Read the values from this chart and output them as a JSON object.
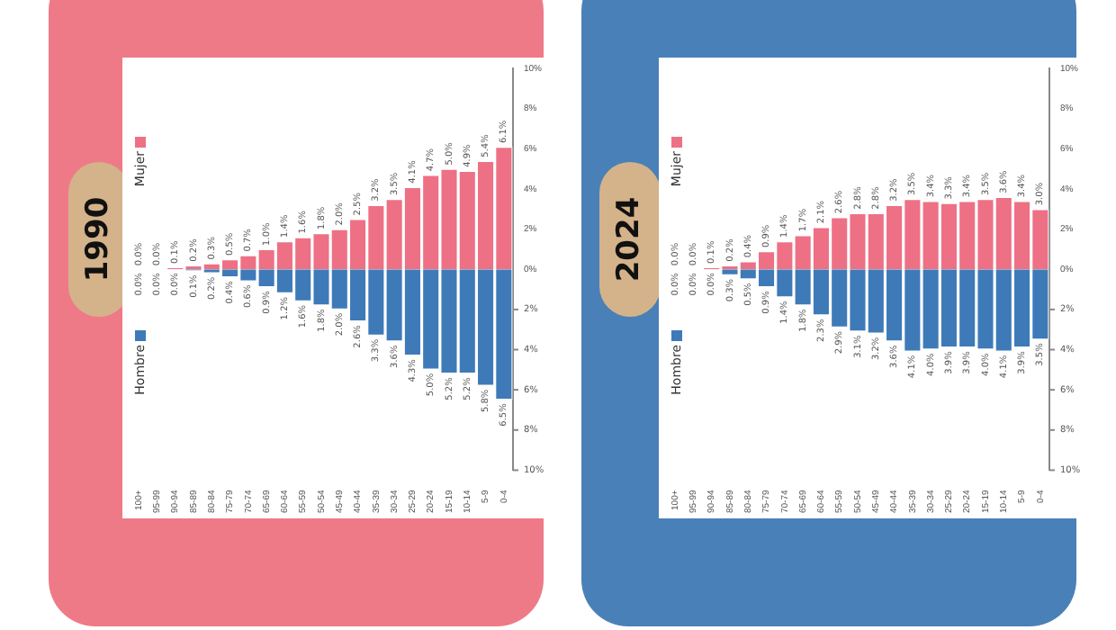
{
  "chart_data": [
    {
      "type": "bar",
      "title": "1990",
      "stacked": true,
      "legend": "left",
      "grid": false,
      "categories": [
        "100+",
        "95-99",
        "90-94",
        "85-89",
        "80-84",
        "75-79",
        "70-74",
        "65-69",
        "60-64",
        "55-59",
        "50-54",
        "45-49",
        "40-44",
        "35-39",
        "30-34",
        "25-29",
        "20-24",
        "15-19",
        "10-14",
        "5-9",
        "0-4"
      ],
      "series": [
        {
          "name": "Mujer",
          "color": "#ee7085",
          "values": [
            0,
            0,
            0.1,
            0.2,
            0.3,
            0.5,
            0.7,
            1,
            1.4,
            1.6,
            1.8,
            2,
            2.5,
            3.2,
            3.5,
            4.1,
            4.7,
            5,
            4.9,
            5.4,
            6.1
          ],
          "value_labels": [
            "0.0%",
            "0.0%",
            "0.1%",
            "0.2%",
            "0.3%",
            "0.5%",
            "0.7%",
            "1.0%",
            "1.4%",
            "1.6%",
            "1.8%",
            "2.0%",
            "2.5%",
            "3.2%",
            "3.5%",
            "4.1%",
            "4.7%",
            "5.0%",
            "4.9%",
            "5.4%",
            "6.1%"
          ]
        },
        {
          "name": "Hombre",
          "color": "#3e7ab8",
          "axis": "y2",
          "values": [
            0,
            0,
            0,
            0.1,
            0.2,
            0.4,
            0.6,
            0.9,
            1.2,
            1.6,
            1.8,
            2,
            2.6,
            3.3,
            3.6,
            4.3,
            5,
            5.2,
            5.2,
            5.8,
            6.5
          ],
          "value_labels": [
            "0.0%",
            "0.0%",
            "0.0%",
            "0.1%",
            "0.2%",
            "0.4%",
            "0.6%",
            "0.9%",
            "1.2%",
            "1.6%",
            "1.8%",
            "2.0%",
            "2.6%",
            "3.3%",
            "3.6%",
            "4.3%",
            "5.0%",
            "5.2%",
            "5.2%",
            "5.8%",
            "6.5%"
          ]
        }
      ],
      "ylim": [
        -10,
        10
      ],
      "yticks": [
        {
          "value": 0,
          "label": "0%"
        },
        {
          "value": 2,
          "label": "2%"
        },
        {
          "value": 4,
          "label": "4%"
        },
        {
          "value": 6,
          "label": "6%"
        },
        {
          "value": 8,
          "label": "8%"
        },
        {
          "value": 10,
          "label": "10%"
        }
      ],
      "y2lim": [
        10,
        -10
      ],
      "y2ticks": [
        {
          "value": 2,
          "label": "2%"
        },
        {
          "value": 4,
          "label": "4%"
        },
        {
          "value": 6,
          "label": "6%"
        },
        {
          "value": 8,
          "label": "8%"
        },
        {
          "value": 10,
          "label": "10%"
        }
      ]
    },
    {
      "type": "bar",
      "title": "2024",
      "stacked": true,
      "legend": "left",
      "grid": false,
      "categories": [
        "100+",
        "95-99",
        "90-94",
        "85-89",
        "80-84",
        "75-79",
        "70-74",
        "65-69",
        "60-64",
        "55-59",
        "50-54",
        "45-49",
        "40-44",
        "35-39",
        "30-34",
        "25-29",
        "20-24",
        "15-19",
        "10-14",
        "5-9",
        "0-4"
      ],
      "series": [
        {
          "name": "Mujer",
          "color": "#ee7085",
          "values": [
            0,
            0,
            0.1,
            0.2,
            0.4,
            0.9,
            1.4,
            1.7,
            2.1,
            2.6,
            2.8,
            2.8,
            3.2,
            3.5,
            3.4,
            3.3,
            3.4,
            3.5,
            3.6,
            3.4,
            3
          ],
          "value_labels": [
            "0.0%",
            "0.0%",
            "0.1%",
            "0.2%",
            "0.4%",
            "0.9%",
            "1.4%",
            "1.7%",
            "2.1%",
            "2.6%",
            "2.8%",
            "2.8%",
            "3.2%",
            "3.5%",
            "3.4%",
            "3.3%",
            "3.4%",
            "3.5%",
            "3.6%",
            "3.4%",
            "3.0%"
          ]
        },
        {
          "name": "Hombre",
          "color": "#3e7ab8",
          "axis": "y2",
          "values": [
            0,
            0,
            0,
            0.3,
            0.5,
            0.9,
            1.4,
            1.8,
            2.3,
            2.9,
            3.1,
            3.2,
            3.6,
            4.1,
            4,
            3.9,
            3.9,
            4,
            4.1,
            3.9,
            3.5
          ],
          "value_labels": [
            "0.0%",
            "0.0%",
            "0.0%",
            "0.3%",
            "0.5%",
            "0.9%",
            "1.4%",
            "1.8%",
            "2.3%",
            "2.9%",
            "3.1%",
            "3.2%",
            "3.6%",
            "4.1%",
            "4.0%",
            "3.9%",
            "3.9%",
            "4.0%",
            "4.1%",
            "3.9%",
            "3.5%"
          ]
        }
      ],
      "ylim": [
        -10,
        10
      ],
      "yticks": [
        {
          "value": 0,
          "label": "0%"
        },
        {
          "value": 2,
          "label": "2%"
        },
        {
          "value": 4,
          "label": "4%"
        },
        {
          "value": 6,
          "label": "6%"
        },
        {
          "value": 8,
          "label": "8%"
        },
        {
          "value": 10,
          "label": "10%"
        }
      ],
      "y2lim": [
        10,
        -10
      ],
      "y2ticks": [
        {
          "value": 2,
          "label": "2%"
        },
        {
          "value": 4,
          "label": "4%"
        },
        {
          "value": 6,
          "label": "6%"
        },
        {
          "value": 8,
          "label": "8%"
        },
        {
          "value": 10,
          "label": "10%"
        }
      ]
    }
  ]
}
